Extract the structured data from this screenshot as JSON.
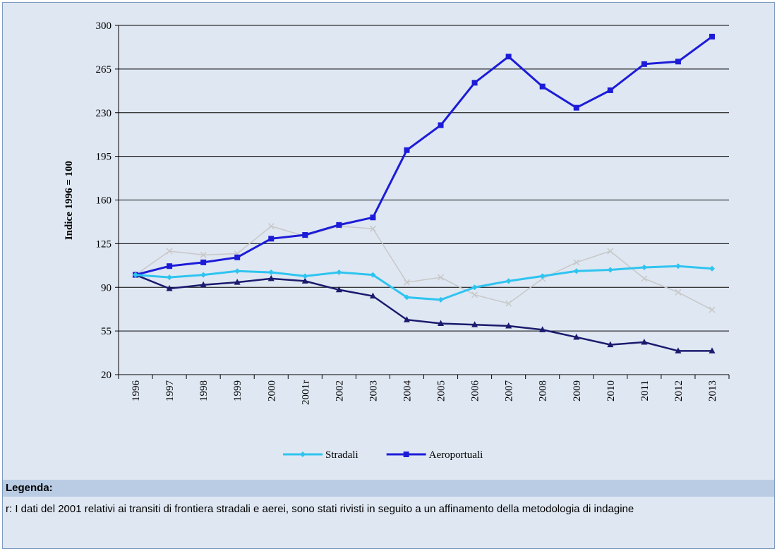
{
  "chart_data": {
    "type": "line",
    "ylabel": "Indice 1996 = 100",
    "categories": [
      "1996",
      "1997",
      "1998",
      "1999",
      "2000",
      "2001r",
      "2002",
      "2003",
      "2004",
      "2005",
      "2006",
      "2007",
      "2008",
      "2009",
      "2010",
      "2011",
      "2012",
      "2013"
    ],
    "ylim": [
      20,
      300
    ],
    "yticks": [
      20,
      55,
      90,
      125,
      160,
      195,
      230,
      265,
      300
    ],
    "grid": true,
    "series": [
      {
        "name": "Stradali",
        "color": "#2ec4f0",
        "marker": "diamond",
        "values": [
          100,
          98,
          100,
          103,
          102,
          99,
          102,
          100,
          82,
          80,
          90,
          95,
          99,
          103,
          104,
          106,
          107,
          105
        ]
      },
      {
        "name": "Aeroportuali",
        "color": "#1c1cd8",
        "marker": "square",
        "values": [
          100,
          107,
          110,
          114,
          129,
          132,
          140,
          146,
          200,
          220,
          254,
          275,
          251,
          234,
          248,
          269,
          271,
          291
        ]
      },
      {
        "color": "#1a1a6e",
        "marker": "triangle",
        "values": [
          100,
          89,
          92,
          94,
          97,
          95,
          88,
          83,
          64,
          61,
          60,
          59,
          56,
          50,
          44,
          46,
          39,
          39
        ]
      },
      {
        "color": "#c8c8c8",
        "marker": "x",
        "values": [
          100,
          119,
          116,
          117,
          139,
          131,
          139,
          137,
          94,
          98,
          84,
          77,
          97,
          110,
          119,
          97,
          86,
          72
        ]
      }
    ]
  },
  "notes": {
    "heading": "Legenda:",
    "text": "r: I dati del 2001 relativi ai transiti di frontiera stradali e aerei, sono stati rivisti in seguito a un affinamento della metodologia di indagine"
  }
}
